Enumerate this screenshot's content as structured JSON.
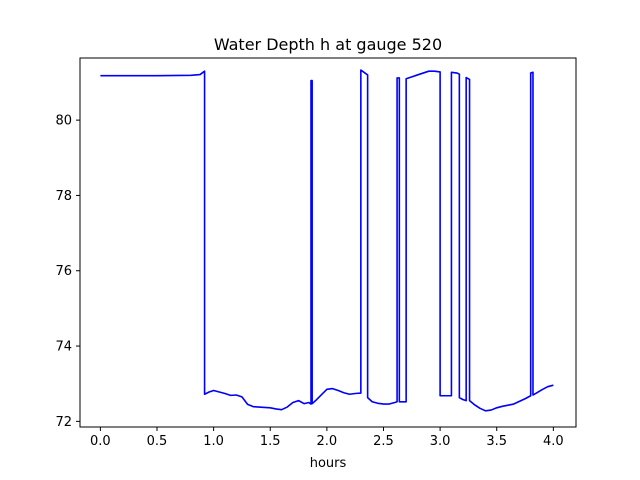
{
  "chart_data": {
    "type": "line",
    "title": "Water Depth h at gauge 520",
    "xlabel": "hours",
    "ylabel": "",
    "xlim": [
      -0.18,
      4.2
    ],
    "ylim": [
      71.85,
      81.65
    ],
    "xticks": [
      0.0,
      0.5,
      1.0,
      1.5,
      2.0,
      2.5,
      3.0,
      3.5,
      4.0
    ],
    "xtick_labels": [
      "0.0",
      "0.5",
      "1.0",
      "1.5",
      "2.0",
      "2.5",
      "3.0",
      "3.5",
      "4.0"
    ],
    "yticks": [
      72,
      74,
      76,
      78,
      80
    ],
    "ytick_labels": [
      "72",
      "74",
      "76",
      "78",
      "80"
    ],
    "grid": false,
    "series": [
      {
        "color": "#0000ff",
        "x": [
          0.0,
          0.2,
          0.5,
          0.8,
          0.88,
          0.92,
          0.92,
          0.96,
          1.0,
          1.05,
          1.1,
          1.15,
          1.2,
          1.25,
          1.3,
          1.35,
          1.4,
          1.45,
          1.5,
          1.55,
          1.6,
          1.65,
          1.7,
          1.75,
          1.8,
          1.84,
          1.86,
          1.86,
          1.87,
          1.87,
          1.9,
          1.95,
          2.0,
          2.05,
          2.1,
          2.15,
          2.2,
          2.25,
          2.3,
          2.3,
          2.36,
          2.36,
          2.4,
          2.45,
          2.5,
          2.55,
          2.6,
          2.62,
          2.62,
          2.64,
          2.64,
          2.66,
          2.7,
          2.7,
          2.75,
          2.8,
          2.85,
          2.9,
          2.95,
          3.0,
          3.0,
          3.05,
          3.1,
          3.1,
          3.15,
          3.17,
          3.17,
          3.2,
          3.23,
          3.23,
          3.26,
          3.26,
          3.3,
          3.35,
          3.4,
          3.45,
          3.5,
          3.55,
          3.6,
          3.65,
          3.7,
          3.75,
          3.8,
          3.8,
          3.82,
          3.82,
          3.85,
          3.9,
          3.95,
          4.0
        ],
        "y": [
          81.18,
          81.18,
          81.18,
          81.19,
          81.21,
          81.3,
          72.72,
          72.78,
          72.82,
          72.78,
          72.74,
          72.69,
          72.7,
          72.65,
          72.45,
          72.39,
          72.38,
          72.37,
          72.36,
          72.33,
          72.31,
          72.38,
          72.5,
          72.55,
          72.47,
          72.5,
          72.46,
          81.05,
          81.05,
          72.47,
          72.55,
          72.7,
          72.85,
          72.87,
          72.82,
          72.76,
          72.72,
          72.74,
          72.75,
          81.33,
          81.2,
          72.63,
          72.52,
          72.48,
          72.46,
          72.46,
          72.5,
          72.52,
          81.12,
          81.12,
          72.52,
          72.52,
          72.52,
          81.1,
          81.15,
          81.2,
          81.25,
          81.3,
          81.3,
          81.28,
          72.68,
          72.68,
          72.68,
          81.27,
          81.25,
          81.22,
          72.63,
          72.58,
          72.55,
          81.13,
          81.08,
          72.55,
          72.45,
          72.35,
          72.28,
          72.3,
          72.36,
          72.4,
          72.43,
          72.46,
          72.53,
          72.6,
          72.68,
          81.25,
          81.27,
          72.7,
          72.75,
          72.84,
          72.92,
          72.96
        ]
      }
    ]
  }
}
